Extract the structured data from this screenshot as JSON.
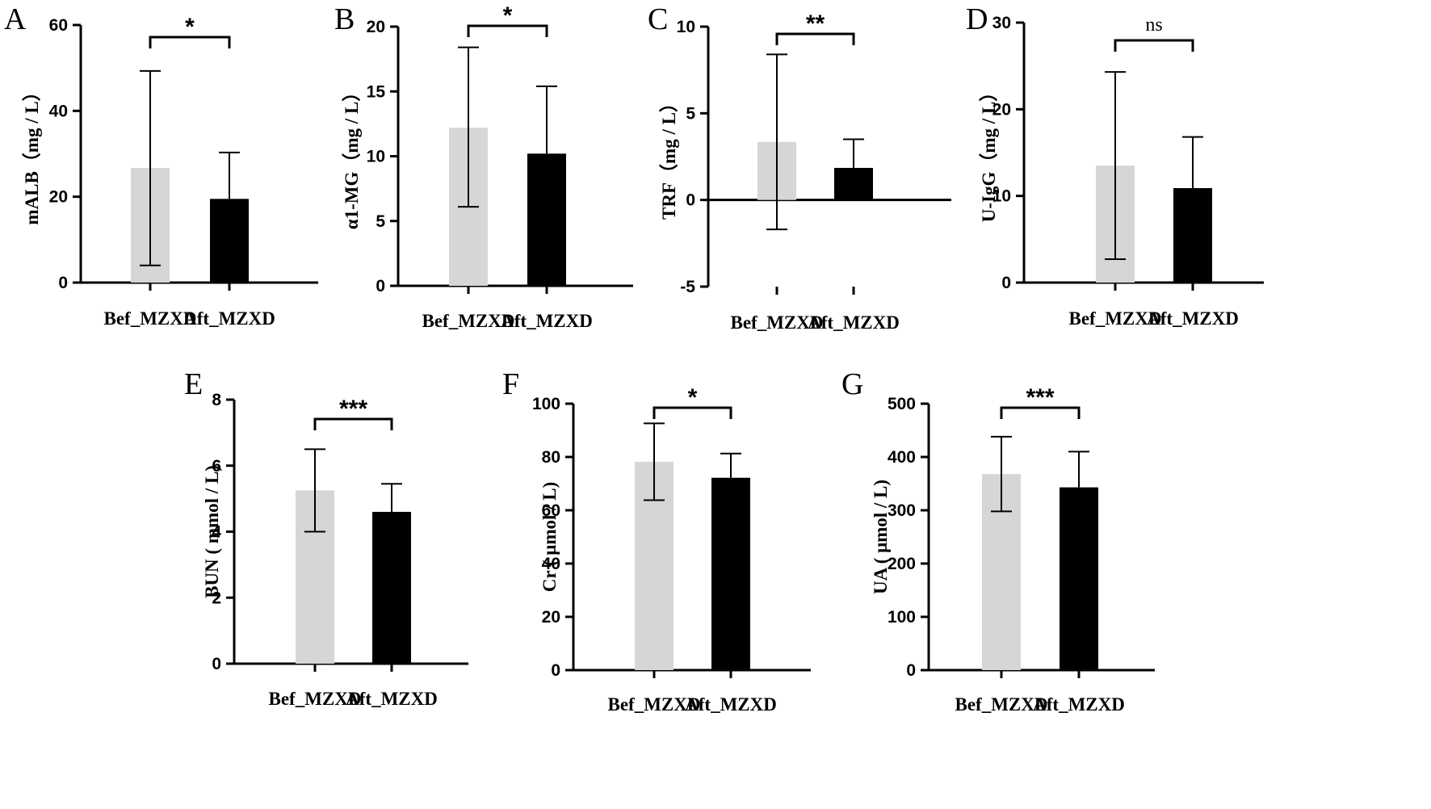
{
  "colors": {
    "before": "#d6d6d6",
    "after": "#000000",
    "axis": "#000000"
  },
  "chart_data": [
    {
      "panel": "A",
      "type": "bar",
      "categories": [
        "Bef_MZXD",
        "Aft_MZXD"
      ],
      "values": [
        26.7,
        19.5
      ],
      "errors": [
        [
          4.0,
          49.3
        ],
        [
          19.5,
          30.3
        ]
      ],
      "ylabel": "mALB（mg / L）",
      "ylim": [
        0,
        60
      ],
      "yticks": [
        0,
        20,
        40,
        60
      ],
      "significance": "*"
    },
    {
      "panel": "B",
      "type": "bar",
      "categories": [
        "Bef_MZXD",
        "Aft_MZXD"
      ],
      "values": [
        12.2,
        10.2
      ],
      "errors": [
        [
          6.1,
          18.4
        ],
        [
          10.2,
          15.4
        ]
      ],
      "ylabel": "α1-MG（mg / L）",
      "ylim": [
        0,
        20
      ],
      "yticks": [
        0,
        5,
        10,
        15,
        20
      ],
      "significance": "*"
    },
    {
      "panel": "C",
      "type": "bar",
      "categories": [
        "Bef_MZXD",
        "Aft_MZXD"
      ],
      "values": [
        3.35,
        1.85
      ],
      "errors": [
        [
          -1.7,
          8.4
        ],
        [
          1.85,
          3.5
        ]
      ],
      "ylabel": "TRF（mg / L）",
      "ylim": [
        -5,
        10
      ],
      "yticks": [
        -5,
        0,
        5,
        10
      ],
      "significance": "**"
    },
    {
      "panel": "D",
      "type": "bar",
      "categories": [
        "Bef_MZXD",
        "Aft_MZXD"
      ],
      "values": [
        13.5,
        10.9
      ],
      "errors": [
        [
          2.7,
          24.3
        ],
        [
          10.9,
          16.8
        ]
      ],
      "ylabel": "U-IgG（mg / L）",
      "ylim": [
        0,
        30
      ],
      "yticks": [
        0,
        10,
        20,
        30
      ],
      "significance": "ns"
    },
    {
      "panel": "E",
      "type": "bar",
      "categories": [
        "Bef_MZXD",
        "Aft_MZXD"
      ],
      "values": [
        5.25,
        4.6
      ],
      "errors": [
        [
          4.0,
          6.5
        ],
        [
          4.6,
          5.45
        ]
      ],
      "ylabel": "BUN ( mmol / L)",
      "ylim": [
        0,
        8
      ],
      "yticks": [
        0,
        2,
        4,
        6,
        8
      ],
      "significance": "***"
    },
    {
      "panel": "F",
      "type": "bar",
      "categories": [
        "Bef_MZXD",
        "Aft_MZXD"
      ],
      "values": [
        78.2,
        72.2
      ],
      "errors": [
        [
          63.8,
          92.6
        ],
        [
          72.2,
          81.3
        ]
      ],
      "ylabel": "Cr ( μmol / L)",
      "ylim": [
        0,
        100
      ],
      "yticks": [
        0,
        20,
        40,
        60,
        80,
        100
      ],
      "significance": "*"
    },
    {
      "panel": "G",
      "type": "bar",
      "categories": [
        "Bef_MZXD",
        "Aft_MZXD"
      ],
      "values": [
        368,
        343
      ],
      "errors": [
        [
          298,
          438
        ],
        [
          343,
          410
        ]
      ],
      "ylabel": "UA ( μmol / L)",
      "ylim": [
        0,
        500
      ],
      "yticks": [
        0,
        100,
        200,
        300,
        400,
        500
      ],
      "significance": "***"
    }
  ]
}
